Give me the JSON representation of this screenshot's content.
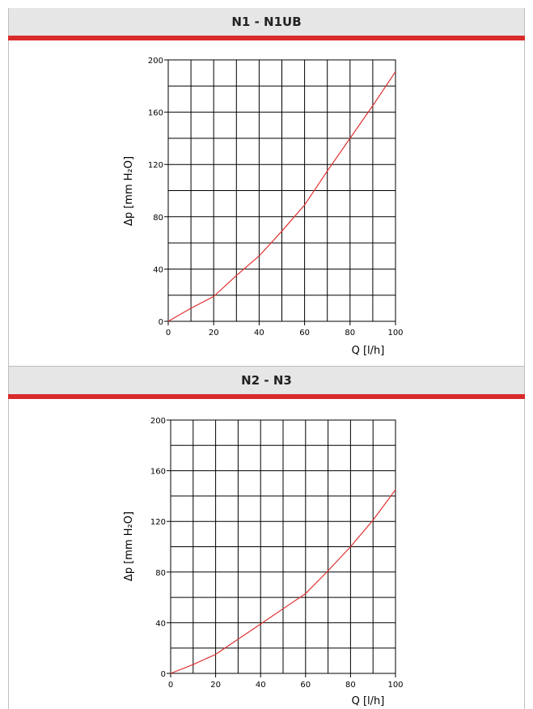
{
  "chart_data": [
    {
      "type": "line",
      "title": "N1 - N1UB",
      "xlabel": "Q [l/h]",
      "ylabel": "Δp [mm H₂O]",
      "xlim": [
        0,
        100
      ],
      "ylim": [
        0,
        200
      ],
      "x_ticks": [
        0,
        20,
        40,
        60,
        80,
        100
      ],
      "y_ticks": [
        0,
        40,
        80,
        120,
        160,
        200
      ],
      "grid": true,
      "series": [
        {
          "x": [
            0,
            10,
            20,
            30,
            40,
            50,
            60,
            70,
            80,
            90,
            100
          ],
          "y": [
            0,
            10,
            19,
            35,
            50,
            69,
            89,
            115,
            140,
            165,
            191
          ],
          "color": "#e03030"
        }
      ]
    },
    {
      "type": "line",
      "title": "N2 - N3",
      "xlabel": "Q [l/h]",
      "ylabel": "Δp [mm H₂O]",
      "xlim": [
        0,
        100
      ],
      "ylim": [
        0,
        200
      ],
      "x_ticks": [
        0,
        20,
        40,
        60,
        80,
        100
      ],
      "y_ticks": [
        0,
        40,
        80,
        120,
        160,
        200
      ],
      "grid": true,
      "series": [
        {
          "x": [
            0,
            10,
            20,
            30,
            40,
            50,
            60,
            70,
            80,
            90,
            100
          ],
          "y": [
            0,
            7,
            15,
            27,
            39,
            51,
            63,
            81,
            100,
            121,
            145
          ],
          "color": "#e03030"
        }
      ]
    }
  ]
}
